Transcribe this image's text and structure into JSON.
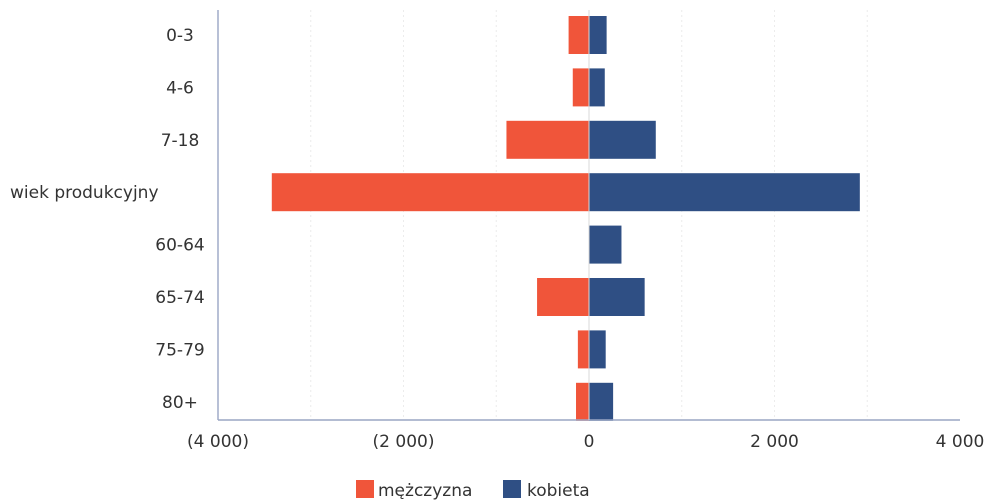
{
  "chart_data": {
    "type": "bar",
    "orientation": "horizontal",
    "title": "",
    "xlabel": "",
    "ylabel": "",
    "categories": [
      "0-3",
      "4-6",
      "7-18",
      "wiek produkcyjny",
      "60-64",
      "65-74",
      "75-79",
      "80+"
    ],
    "series": [
      {
        "name": "mężczyzna",
        "color": "#f0553a",
        "values": [
          -220,
          -175,
          -890,
          -3420,
          0,
          -560,
          -120,
          -140
        ]
      },
      {
        "name": "kobieta",
        "color": "#2f4f84",
        "values": [
          190,
          170,
          720,
          2920,
          350,
          600,
          180,
          260
        ]
      }
    ],
    "xlim": [
      -4000,
      4000
    ],
    "xticks": [
      {
        "value": -4000,
        "label": "(4 000)"
      },
      {
        "value": -2000,
        "label": "(2 000)"
      },
      {
        "value": 0,
        "label": "0"
      },
      {
        "value": 2000,
        "label": "2 000"
      },
      {
        "value": 4000,
        "label": "4 000"
      }
    ],
    "grid": true,
    "legend": "bottom"
  }
}
